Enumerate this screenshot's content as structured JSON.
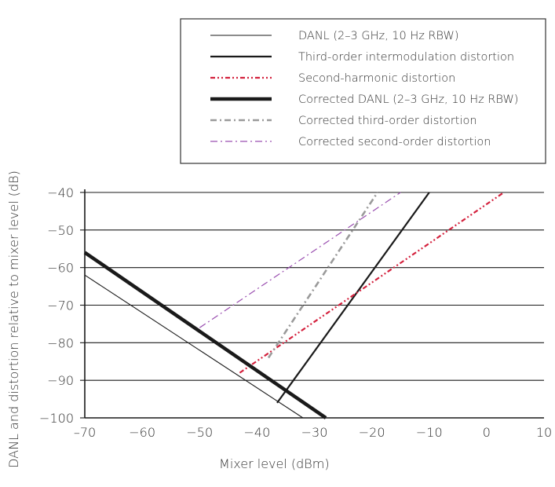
{
  "chart_data": {
    "type": "line",
    "title": "",
    "xlabel": "Mixer level (dBm)",
    "ylabel": "DANL and distortion relative to mixer level (dB)",
    "xlim": [
      -70,
      10
    ],
    "ylim": [
      -100,
      -40
    ],
    "x_ticks": [
      -70,
      -60,
      -50,
      -40,
      -30,
      -20,
      -10,
      0,
      10
    ],
    "x_tick_labels": [
      "–70",
      "−60",
      "−50",
      "−40",
      "−30",
      "−20",
      "−10",
      "0",
      "10"
    ],
    "y_ticks": [
      -40,
      -50,
      -60,
      -70,
      -80,
      -90,
      -100
    ],
    "y_tick_labels": [
      "−40",
      "−50",
      "−60",
      "−70",
      "−80",
      "−90",
      "−100"
    ],
    "grid": "horizontal",
    "legend_position": "top-right",
    "series": [
      {
        "name": "DANL (2–3 GHz, 10 Hz RBW)",
        "style": "thin-solid",
        "color": "#1a1a1a",
        "x": [
          -70,
          -32
        ],
        "y": [
          -62,
          -100
        ]
      },
      {
        "name": "Third-order intermodulation distortion",
        "style": "solid",
        "color": "#1a1a1a",
        "x": [
          -36.5,
          -10
        ],
        "y": [
          -96,
          -40
        ]
      },
      {
        "name": "Second-harmonic distortion",
        "style": "dash-dot-dot",
        "color": "#d4213d",
        "x": [
          -43,
          3
        ],
        "y": [
          -88,
          -40
        ]
      },
      {
        "name": "Corrected DANL (2–3 GHz, 10 Hz RBW)",
        "style": "thick-solid",
        "color": "#1a1a1a",
        "x": [
          -70,
          -28
        ],
        "y": [
          -56,
          -100
        ]
      },
      {
        "name": "Corrected third-order distortion",
        "style": "dash-dot-gray",
        "color": "#9a9a9a",
        "x": [
          -38,
          -19
        ],
        "y": [
          -84,
          -40
        ]
      },
      {
        "name": "Corrected second-order distortion",
        "style": "dash-dot-purple",
        "color": "#9a4fb0",
        "x": [
          -50,
          -15
        ],
        "y": [
          -76,
          -40
        ]
      }
    ]
  }
}
